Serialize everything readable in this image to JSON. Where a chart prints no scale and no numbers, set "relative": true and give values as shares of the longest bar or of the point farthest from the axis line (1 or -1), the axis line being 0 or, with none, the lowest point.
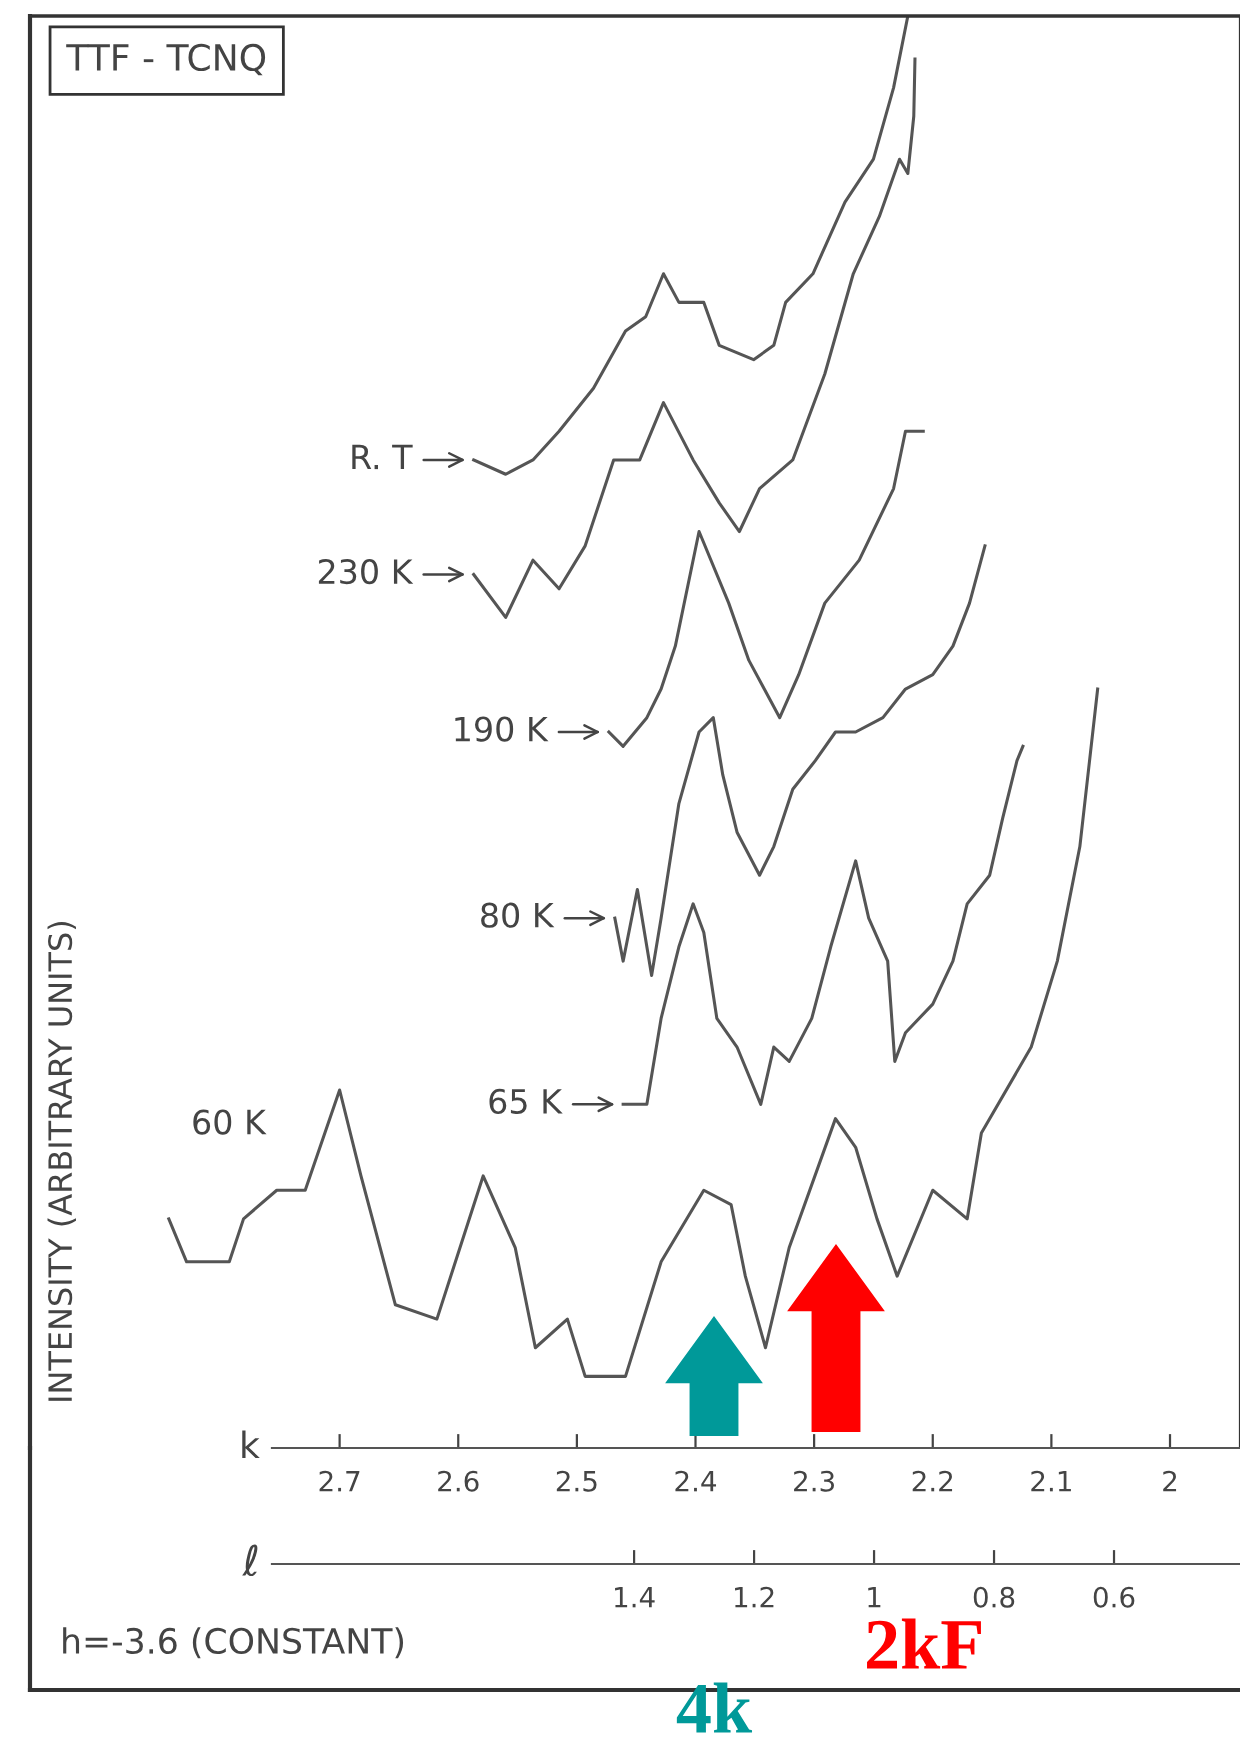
{
  "chart_data": {
    "type": "line",
    "title": "TTF - TCNQ",
    "ylabel": "INTENSITY (ARBITRARY UNITS)",
    "xlabel": "k",
    "x2label": "ℓ",
    "relative": true,
    "legend": false,
    "grid": false,
    "marker": "none",
    "line_style": "solid",
    "xlim": [
      2.961,
      1.941
    ],
    "xticks": [
      2.7,
      2.6,
      2.5,
      2.4,
      2.3,
      2.2,
      2.1,
      2
    ],
    "x2lim": [
      2.407,
      0.39
    ],
    "x2ticks": [
      1.4,
      1.2,
      1,
      0.8,
      0.6
    ],
    "annotations": [
      "h=-3.6 (CONSTANT)",
      "4k",
      "2kF"
    ],
    "series": [
      {
        "name": "R. T",
        "color": "#555555",
        "x": [
          2.587,
          2.56,
          2.537,
          2.515,
          2.486,
          2.459,
          2.442,
          2.427,
          2.414,
          2.393,
          2.38,
          2.351,
          2.334,
          2.324,
          2.301,
          2.274,
          2.25,
          2.233,
          2.221
        ],
        "values": [
          0.69,
          0.68,
          0.69,
          0.71,
          0.74,
          0.78,
          0.79,
          0.82,
          0.8,
          0.8,
          0.77,
          0.76,
          0.77,
          0.8,
          0.82,
          0.87,
          0.9,
          0.95,
          1.0
        ]
      },
      {
        "name": "230 K",
        "color": "#555555",
        "x": [
          2.587,
          2.56,
          2.537,
          2.515,
          2.493,
          2.469,
          2.447,
          2.427,
          2.402,
          2.38,
          2.363,
          2.346,
          2.318,
          2.291,
          2.267,
          2.245,
          2.228,
          2.221,
          2.216,
          2.215
        ],
        "values": [
          0.61,
          0.58,
          0.62,
          0.6,
          0.63,
          0.69,
          0.69,
          0.73,
          0.69,
          0.66,
          0.64,
          0.67,
          0.69,
          0.75,
          0.82,
          0.86,
          0.9,
          0.89,
          0.93,
          0.97
        ]
      },
      {
        "name": "190 K",
        "color": "#555555",
        "x": [
          2.473,
          2.461,
          2.441,
          2.429,
          2.417,
          2.397,
          2.372,
          2.355,
          2.329,
          2.313,
          2.291,
          2.262,
          2.233,
          2.223,
          2.208
        ],
        "values": [
          0.5,
          0.49,
          0.51,
          0.53,
          0.56,
          0.64,
          0.59,
          0.55,
          0.51,
          0.54,
          0.59,
          0.62,
          0.67,
          0.71,
          0.71
        ]
      },
      {
        "name": "80 K",
        "color": "#555555",
        "x": [
          2.468,
          2.461,
          2.449,
          2.437,
          2.429,
          2.414,
          2.397,
          2.385,
          2.377,
          2.365,
          2.346,
          2.334,
          2.318,
          2.299,
          2.282,
          2.265,
          2.242,
          2.223,
          2.2,
          2.183,
          2.169,
          2.156
        ],
        "values": [
          0.37,
          0.34,
          0.39,
          0.33,
          0.37,
          0.45,
          0.5,
          0.51,
          0.47,
          0.43,
          0.4,
          0.42,
          0.46,
          0.48,
          0.5,
          0.5,
          0.51,
          0.53,
          0.54,
          0.56,
          0.59,
          0.63
        ]
      },
      {
        "name": "65 K",
        "color": "#555555",
        "x": [
          2.461,
          2.441,
          2.429,
          2.414,
          2.402,
          2.393,
          2.382,
          2.365,
          2.345,
          2.334,
          2.321,
          2.302,
          2.286,
          2.265,
          2.254,
          2.238,
          2.232,
          2.223,
          2.2,
          2.183,
          2.171,
          2.152,
          2.141,
          2.129,
          2.124
        ],
        "values": [
          0.24,
          0.24,
          0.3,
          0.35,
          0.38,
          0.36,
          0.3,
          0.28,
          0.24,
          0.28,
          0.27,
          0.3,
          0.35,
          0.41,
          0.37,
          0.34,
          0.27,
          0.29,
          0.31,
          0.34,
          0.38,
          0.4,
          0.44,
          0.48,
          0.49
        ]
      },
      {
        "name": "60 K",
        "color": "#555555",
        "x": [
          2.844,
          2.829,
          2.793,
          2.781,
          2.753,
          2.729,
          2.7,
          2.682,
          2.653,
          2.618,
          2.579,
          2.552,
          2.535,
          2.508,
          2.493,
          2.459,
          2.429,
          2.393,
          2.37,
          2.358,
          2.341,
          2.321,
          2.282,
          2.265,
          2.247,
          2.23,
          2.2,
          2.171,
          2.159,
          2.117,
          2.095,
          2.076,
          2.061
        ],
        "values": [
          0.16,
          0.13,
          0.13,
          0.16,
          0.18,
          0.18,
          0.25,
          0.19,
          0.1,
          0.09,
          0.19,
          0.14,
          0.07,
          0.09,
          0.05,
          0.05,
          0.13,
          0.18,
          0.17,
          0.12,
          0.07,
          0.14,
          0.23,
          0.21,
          0.16,
          0.12,
          0.18,
          0.16,
          0.22,
          0.28,
          0.34,
          0.42,
          0.53
        ]
      }
    ]
  }
}
